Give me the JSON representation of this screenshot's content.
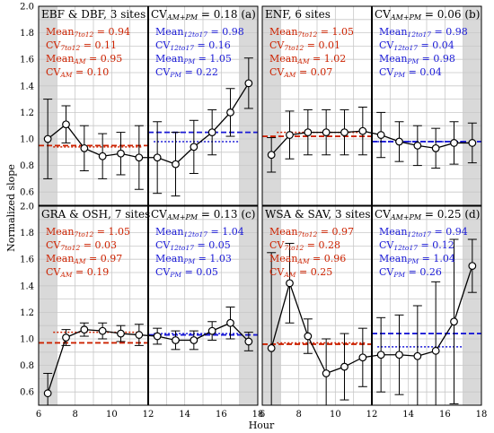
{
  "figure": {
    "ylabel": "Normalized slope",
    "xlabel": "Hour",
    "colors": {
      "red": "#cc2200",
      "blue": "#1a1ad6",
      "shade": "#d9d9d9",
      "grid": "#c8c8c8"
    }
  },
  "chart_data": [
    {
      "type": "line",
      "panel": "a",
      "title": "EBF & DBF, 3 sites",
      "cv_label": "CV",
      "cv_sub": "AM+PM",
      "cv_value": "= 0.18 (a)",
      "red_stats": [
        {
          "name": "Mean",
          "sub": "7to12",
          "value": "= 0.94"
        },
        {
          "name": "CV",
          "sub": "7to12",
          "value": "= 0.11"
        },
        {
          "name": "Mean",
          "sub": "AM",
          "value": "= 0.95"
        },
        {
          "name": "CV",
          "sub": "AM",
          "value": "= 0.10"
        }
      ],
      "blue_stats": [
        {
          "name": "Mean",
          "sub": "12to17",
          "value": "= 0.98"
        },
        {
          "name": "CV",
          "sub": "12to17",
          "value": "= 0.16"
        },
        {
          "name": "Mean",
          "sub": "PM",
          "value": "= 1.05"
        },
        {
          "name": "CV",
          "sub": "PM",
          "value": "= 0.22"
        }
      ],
      "x": [
        6.5,
        7.5,
        8.5,
        9.5,
        10.5,
        11.5,
        12.5,
        13.5,
        14.5,
        15.5,
        16.5,
        17.5
      ],
      "y": [
        1.0,
        1.11,
        0.93,
        0.87,
        0.89,
        0.86,
        0.86,
        0.81,
        0.94,
        1.05,
        1.2,
        1.42
      ],
      "yerr": [
        0.3,
        0.14,
        0.17,
        0.17,
        0.16,
        0.24,
        0.27,
        0.24,
        0.2,
        0.17,
        0.18,
        0.19
      ],
      "ylim": [
        0.5,
        2.0
      ],
      "yticks": [
        "0.6",
        "0.8",
        "1.0",
        "1.2",
        "1.4",
        "1.6",
        "1.8",
        "2.0"
      ],
      "xticks": [
        "6",
        "8",
        "10",
        "12",
        "14",
        "16",
        "18"
      ],
      "xlim": [
        6,
        18
      ],
      "ref_lines": {
        "mean_7to12": 0.94,
        "mean_am": 0.95,
        "mean_12to17": 0.98,
        "mean_pm": 1.05
      }
    },
    {
      "type": "line",
      "panel": "b",
      "title": "ENF, 6 sites",
      "cv_label": "CV",
      "cv_sub": "AM+PM",
      "cv_value": "= 0.06 (b)",
      "red_stats": [
        {
          "name": "Mean",
          "sub": "7to12",
          "value": "= 1.05"
        },
        {
          "name": "CV",
          "sub": "7to12",
          "value": "= 0.01"
        },
        {
          "name": "Mean",
          "sub": "AM",
          "value": "= 1.02"
        },
        {
          "name": "CV",
          "sub": "AM",
          "value": "= 0.07"
        }
      ],
      "blue_stats": [
        {
          "name": "Mean",
          "sub": "12to17",
          "value": "= 0.98"
        },
        {
          "name": "CV",
          "sub": "12to17",
          "value": "= 0.04"
        },
        {
          "name": "Mean",
          "sub": "PM",
          "value": "= 0.98"
        },
        {
          "name": "CV",
          "sub": "PM",
          "value": "= 0.04"
        }
      ],
      "x": [
        6.5,
        7.5,
        8.5,
        9.5,
        10.5,
        11.5,
        12.5,
        13.5,
        14.5,
        15.5,
        16.5,
        17.5
      ],
      "y": [
        0.88,
        1.03,
        1.05,
        1.05,
        1.05,
        1.06,
        1.03,
        0.98,
        0.95,
        0.93,
        0.97,
        0.97
      ],
      "yerr": [
        0.13,
        0.18,
        0.17,
        0.17,
        0.17,
        0.18,
        0.17,
        0.15,
        0.15,
        0.15,
        0.16,
        0.15
      ],
      "ylim": [
        0.5,
        2.0
      ],
      "yticks": [
        "0.6",
        "0.8",
        "1.0",
        "1.2",
        "1.4",
        "1.6",
        "1.8",
        "2.0"
      ],
      "xticks": [
        "6",
        "8",
        "10",
        "12",
        "14",
        "16",
        "18"
      ],
      "xlim": [
        6,
        18
      ],
      "ref_lines": {
        "mean_7to12": 1.05,
        "mean_am": 1.02,
        "mean_12to17": 0.98,
        "mean_pm": 0.98
      }
    },
    {
      "type": "line",
      "panel": "c",
      "title": "GRA & OSH, 7 sites",
      "cv_label": "CV",
      "cv_sub": "AM+PM",
      "cv_value": "= 0.13 (c)",
      "red_stats": [
        {
          "name": "Mean",
          "sub": "7to12",
          "value": "= 1.05"
        },
        {
          "name": "CV",
          "sub": "7to12",
          "value": "= 0.03"
        },
        {
          "name": "Mean",
          "sub": "AM",
          "value": "= 0.97"
        },
        {
          "name": "CV",
          "sub": "AM",
          "value": "= 0.19"
        }
      ],
      "blue_stats": [
        {
          "name": "Mean",
          "sub": "12to17",
          "value": "= 1.04"
        },
        {
          "name": "CV",
          "sub": "12to17",
          "value": "= 0.05"
        },
        {
          "name": "Mean",
          "sub": "PM",
          "value": "= 1.03"
        },
        {
          "name": "CV",
          "sub": "PM",
          "value": "= 0.05"
        }
      ],
      "x": [
        6.5,
        7.5,
        8.5,
        9.5,
        10.5,
        11.5,
        12.5,
        13.5,
        14.5,
        15.5,
        16.5,
        17.5
      ],
      "y": [
        0.59,
        1.01,
        1.07,
        1.06,
        1.04,
        1.03,
        1.02,
        0.99,
        0.99,
        1.06,
        1.12,
        0.98
      ],
      "yerr": [
        0.15,
        0.06,
        0.05,
        0.06,
        0.06,
        0.08,
        0.06,
        0.07,
        0.07,
        0.07,
        0.12,
        0.07
      ],
      "ylim": [
        0.5,
        2.0
      ],
      "yticks": [
        "0.6",
        "0.8",
        "1.0",
        "1.2",
        "1.4",
        "1.6",
        "1.8",
        "2.0"
      ],
      "xticks": [
        "6",
        "8",
        "10",
        "12",
        "14",
        "16",
        "18"
      ],
      "xlim": [
        6,
        18
      ],
      "ref_lines": {
        "mean_7to12": 1.05,
        "mean_am": 0.97,
        "mean_12to17": 1.04,
        "mean_pm": 1.03
      }
    },
    {
      "type": "line",
      "panel": "d",
      "title": "WSA & SAV, 3 sites",
      "cv_label": "CV",
      "cv_sub": "AM+PM",
      "cv_value": "= 0.25 (d)",
      "red_stats": [
        {
          "name": "Mean",
          "sub": "7to12",
          "value": "= 0.97"
        },
        {
          "name": "CV",
          "sub": "7to12",
          "value": "= 0.28"
        },
        {
          "name": "Mean",
          "sub": "AM",
          "value": "= 0.96"
        },
        {
          "name": "CV",
          "sub": "AM",
          "value": "= 0.25"
        }
      ],
      "blue_stats": [
        {
          "name": "Mean",
          "sub": "12to17",
          "value": "= 0.94"
        },
        {
          "name": "CV",
          "sub": "12to17",
          "value": "= 0.12"
        },
        {
          "name": "Mean",
          "sub": "PM",
          "value": "= 1.04"
        },
        {
          "name": "CV",
          "sub": "PM",
          "value": "= 0.26"
        }
      ],
      "x": [
        6.5,
        7.5,
        8.5,
        9.5,
        10.5,
        11.5,
        12.5,
        13.5,
        14.5,
        15.5,
        16.5,
        17.5
      ],
      "y": [
        0.93,
        1.42,
        1.02,
        0.74,
        0.79,
        0.86,
        0.88,
        0.88,
        0.87,
        0.91,
        1.13,
        1.55
      ],
      "yerr": [
        0.72,
        0.3,
        0.13,
        0.26,
        0.25,
        0.22,
        0.28,
        0.3,
        0.38,
        0.52,
        0.62,
        0.2
      ],
      "ylim": [
        0.5,
        2.0
      ],
      "yticks": [
        "0.6",
        "0.8",
        "1.0",
        "1.2",
        "1.4",
        "1.6",
        "1.8",
        "2.0"
      ],
      "xticks": [
        "6",
        "8",
        "10",
        "12",
        "14",
        "16",
        "18"
      ],
      "xlim": [
        6,
        18
      ],
      "ref_lines": {
        "mean_7to12": 0.97,
        "mean_am": 0.96,
        "mean_12to17": 0.94,
        "mean_pm": 1.04
      }
    }
  ]
}
